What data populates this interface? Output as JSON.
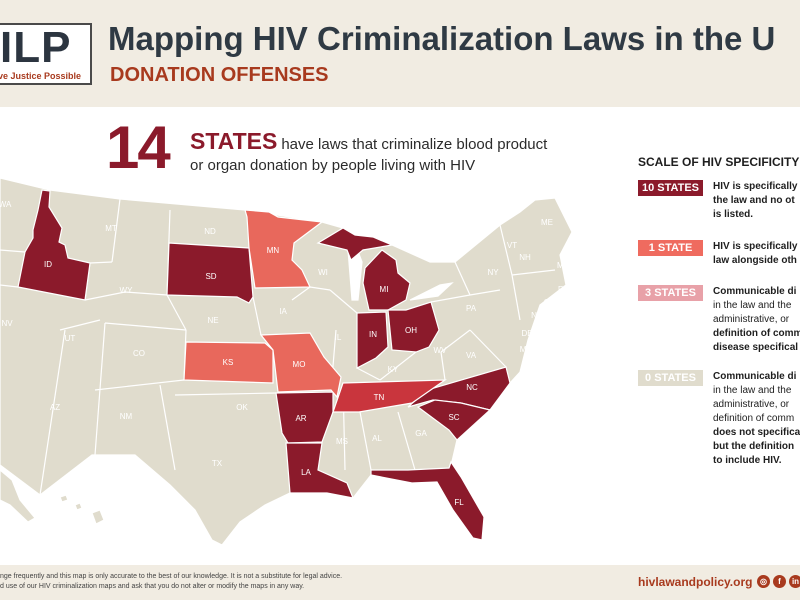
{
  "header": {
    "logo_text": "ILP",
    "logo_tagline": "ve Justice Possible",
    "title": "Mapping HIV Criminalization Laws in the U",
    "subtitle": "DONATION OFFENSES"
  },
  "headline": {
    "number": "14",
    "states_word": "STATES",
    "line1": "have laws that criminalize blood product",
    "line2": "or organ donation by people living with HIV"
  },
  "legend": {
    "title": "SCALE OF HIV SPECIFICITY",
    "items": [
      {
        "badge": "10 STATES",
        "color": "#8b1a2b",
        "lines": [
          {
            "t": "HIV is specifically",
            "b": true
          },
          {
            "t": "the law and no ot",
            "b": true
          },
          {
            "t": "is listed.",
            "b": true
          }
        ]
      },
      {
        "badge": "1 STATE",
        "color": "#ef6b5f",
        "lines": [
          {
            "t": "HIV is specifically",
            "b": true
          },
          {
            "t": "law alongside oth",
            "b": true
          }
        ]
      },
      {
        "badge": "3 STATES",
        "color": "#e8a1a8",
        "lines": [
          {
            "t": "Communicable di",
            "b": true
          },
          {
            "t": "in the law and the",
            "b": false
          },
          {
            "t": "administrative, or",
            "b": false
          },
          {
            "t": "definition of comm",
            "b": true
          },
          {
            "t": "disease specifical",
            "b": true
          }
        ]
      },
      {
        "badge": "0 STATES",
        "color": "#e0dccd",
        "lines": [
          {
            "t": "Communicable di",
            "b": true
          },
          {
            "t": "in the law and the",
            "b": false
          },
          {
            "t": "administrative, or",
            "b": false
          },
          {
            "t": "definition of comm",
            "b": false
          },
          {
            "t": "does not specifica",
            "b": true
          },
          {
            "t": "but the definition",
            "b": true
          },
          {
            "t": "to include HIV.",
            "b": true
          }
        ]
      }
    ]
  },
  "map": {
    "colors": {
      "dark": "#8b1a2b",
      "salmon": "#e8685c",
      "red": "#c9353d",
      "base": "#e0dccd"
    },
    "highlighted_states": [
      {
        "abbr": "ID",
        "tone": "dark"
      },
      {
        "abbr": "SD",
        "tone": "dark"
      },
      {
        "abbr": "MI",
        "tone": "dark"
      },
      {
        "abbr": "IN",
        "tone": "dark"
      },
      {
        "abbr": "OH",
        "tone": "dark"
      },
      {
        "abbr": "AR",
        "tone": "dark"
      },
      {
        "abbr": "LA",
        "tone": "dark"
      },
      {
        "abbr": "NC",
        "tone": "dark"
      },
      {
        "abbr": "SC",
        "tone": "dark"
      },
      {
        "abbr": "FL",
        "tone": "dark"
      },
      {
        "abbr": "MN",
        "tone": "salmon"
      },
      {
        "abbr": "KS",
        "tone": "salmon"
      },
      {
        "abbr": "MO",
        "tone": "salmon"
      },
      {
        "abbr": "TN",
        "tone": "red"
      }
    ],
    "other_labels": [
      "WA",
      "MT",
      "ND",
      "WY",
      "NV",
      "UT",
      "CO",
      "NE",
      "IA",
      "WI",
      "IL",
      "AZ",
      "NM",
      "OK",
      "TX",
      "MS",
      "AL",
      "GA",
      "KY",
      "WV",
      "VA",
      "PA",
      "NY",
      "VT",
      "NH",
      "ME",
      "MA",
      "RI",
      "CT",
      "NJ",
      "DE",
      "MD",
      "HI"
    ]
  },
  "footer": {
    "line1": "nge frequently and this map is only accurate to the best of our knowledge. It is not a substitute for legal advice.",
    "line2": "d use of our HIV criminalization maps and ask that you do not alter or modify the maps in any way.",
    "site": "hivlawandpolicy.org",
    "social": [
      "instagram-icon",
      "facebook-icon",
      "linkedin-icon"
    ]
  }
}
